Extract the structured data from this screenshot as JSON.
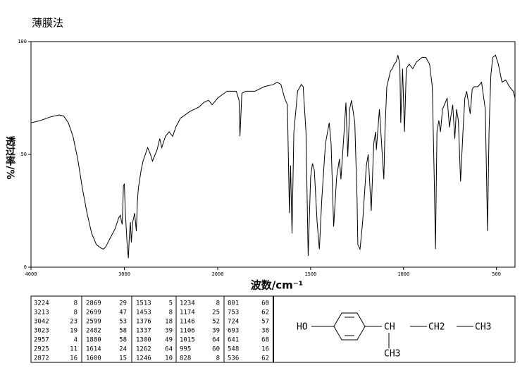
{
  "title": "薄膜法",
  "chart_data": {
    "type": "line",
    "xlabel": "波数/cm⁻¹",
    "ylabel": "透过率/%",
    "xlim": [
      4000,
      400
    ],
    "x_scale_change": 2000,
    "xticks": [
      4000,
      3000,
      2000,
      1500,
      1000,
      500
    ],
    "ylim": [
      0,
      100
    ],
    "yticks": [
      0,
      50,
      100
    ],
    "color": "#000000",
    "x": [
      4000,
      3900,
      3800,
      3700,
      3650,
      3600,
      3550,
      3500,
      3450,
      3400,
      3350,
      3300,
      3250,
      3224,
      3200,
      3150,
      3100,
      3060,
      3042,
      3030,
      3023,
      3010,
      3000,
      2990,
      2970,
      2957,
      2945,
      2935,
      2925,
      2910,
      2890,
      2872,
      2860,
      2850,
      2820,
      2800,
      2750,
      2720,
      2699,
      2650,
      2620,
      2599,
      2560,
      2520,
      2482,
      2450,
      2400,
      2300,
      2200,
      2150,
      2100,
      2060,
      2000,
      1950,
      1900,
      1885,
      1880,
      1870,
      1850,
      1800,
      1750,
      1700,
      1680,
      1660,
      1640,
      1625,
      1614,
      1608,
      1600,
      1590,
      1570,
      1550,
      1540,
      1525,
      1513,
      1500,
      1490,
      1480,
      1465,
      1453,
      1440,
      1420,
      1400,
      1390,
      1376,
      1360,
      1345,
      1337,
      1320,
      1310,
      1300,
      1290,
      1280,
      1262,
      1250,
      1246,
      1234,
      1220,
      1200,
      1190,
      1174,
      1160,
      1150,
      1146,
      1130,
      1106,
      1100,
      1090,
      1070,
      1060,
      1050,
      1040,
      1030,
      1020,
      1015,
      1005,
      995,
      985,
      970,
      950,
      930,
      900,
      880,
      860,
      845,
      835,
      828,
      820,
      810,
      801,
      790,
      775,
      765,
      753,
      745,
      735,
      724,
      715,
      705,
      693,
      680,
      670,
      660,
      641,
      630,
      620,
      600,
      580,
      560,
      548,
      540,
      530,
      520,
      505,
      490,
      470,
      450,
      430,
      410,
      400
    ],
    "values": [
      64,
      65,
      66.5,
      67.5,
      67,
      64,
      58,
      48,
      35,
      24,
      15,
      10,
      8.5,
      8,
      9,
      13,
      17,
      22,
      23,
      20,
      19,
      36,
      37,
      25,
      10,
      4,
      15,
      20,
      11,
      20,
      24,
      16,
      29,
      35,
      43,
      47,
      53,
      50,
      47,
      52,
      57,
      53,
      58,
      60,
      58,
      62,
      66,
      69,
      71,
      73,
      74,
      72,
      75,
      78,
      78,
      74,
      58,
      77,
      78,
      78,
      80,
      81,
      82,
      81,
      75,
      72,
      24,
      45,
      15,
      60,
      78,
      81,
      80,
      60,
      5,
      40,
      46,
      43,
      20,
      8,
      30,
      55,
      64,
      55,
      18,
      40,
      48,
      39,
      60,
      73,
      49,
      70,
      74,
      64,
      30,
      10,
      8,
      20,
      45,
      50,
      25,
      55,
      60,
      52,
      70,
      39,
      60,
      80,
      87,
      88,
      90,
      91,
      94,
      90,
      64,
      88,
      60,
      88,
      90,
      88,
      91,
      93,
      93,
      90,
      80,
      40,
      8,
      60,
      65,
      60,
      70,
      73,
      75,
      62,
      67,
      72,
      57,
      70,
      65,
      38,
      60,
      75,
      78,
      68,
      79,
      80,
      80,
      82,
      70,
      16,
      60,
      85,
      93,
      94,
      90,
      82,
      83,
      80,
      78,
      75
    ]
  },
  "peak_table": {
    "rows": [
      [
        3224,
        8,
        2869,
        29,
        1513,
        5,
        1234,
        8,
        801,
        60
      ],
      [
        3213,
        8,
        2699,
        47,
        1453,
        8,
        1174,
        25,
        753,
        62
      ],
      [
        3042,
        23,
        2599,
        53,
        1376,
        18,
        1146,
        52,
        724,
        57
      ],
      [
        3023,
        19,
        2482,
        58,
        1337,
        39,
        1106,
        39,
        693,
        38
      ],
      [
        2957,
        4,
        1880,
        58,
        1300,
        49,
        1015,
        64,
        641,
        68
      ],
      [
        2925,
        11,
        1614,
        24,
        1262,
        64,
        995,
        60,
        548,
        16
      ],
      [
        2872,
        16,
        1600,
        15,
        1246,
        10,
        828,
        8,
        536,
        62
      ]
    ]
  },
  "structure": {
    "labels": [
      "HO",
      "CH",
      "CH2",
      "CH3",
      "CH3"
    ]
  }
}
